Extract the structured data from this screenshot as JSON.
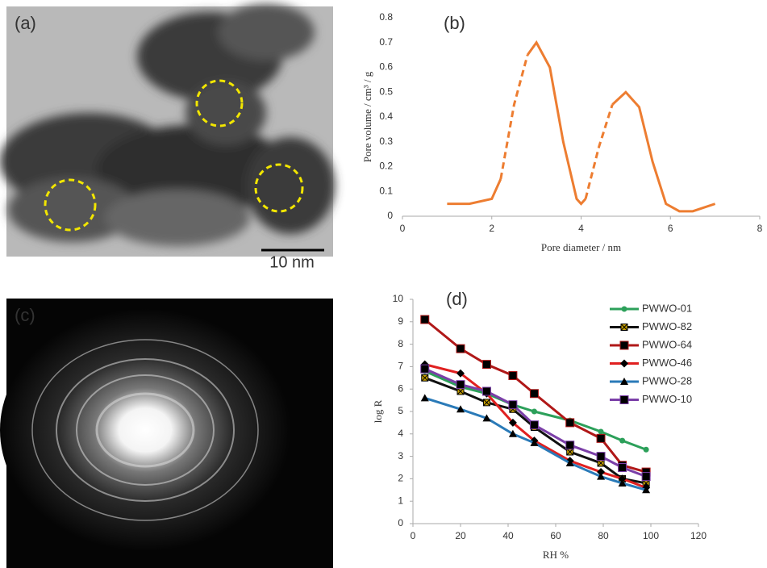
{
  "images": [
    {
      "label": "(a)",
      "scale_bar": "10 nm"
    },
    {
      "label": "(c)"
    }
  ],
  "chart_data": [
    {
      "type": "line",
      "annotation": "(b)",
      "x_label": "Pore diameter / nm",
      "y_label": "Pore volume / cm³ / g",
      "x": [
        1,
        1.5,
        2,
        2.2,
        2.5,
        2.8,
        3,
        3.3,
        3.6,
        3.9,
        4.0,
        4.1,
        4.4,
        4.7,
        5,
        5.3,
        5.6,
        5.9,
        6.2,
        6.5,
        7
      ],
      "series": [
        {
          "color": "#ed7d31",
          "style": "solid",
          "values": [
            0.05,
            0.05,
            0.07,
            0.15,
            null,
            0.65,
            0.7,
            0.6,
            0.3,
            0.07,
            0.05,
            0.07,
            null,
            0.45,
            0.5,
            0.44,
            0.22,
            0.05,
            0.02,
            0.02,
            0.05
          ]
        },
        {
          "color": "#ed7d31",
          "style": "dashed",
          "values": [
            null,
            null,
            null,
            0.15,
            0.45,
            0.65,
            null,
            null,
            null,
            null,
            null,
            0.07,
            0.28,
            0.45,
            null,
            null,
            null,
            null,
            null,
            null,
            null
          ]
        }
      ],
      "xlim": [
        0,
        8
      ],
      "xticks": [
        0,
        2,
        4,
        6,
        8
      ],
      "ylim": [
        0,
        0.8
      ],
      "yticks": [
        0,
        0.1,
        0.2,
        0.3,
        0.4,
        0.5,
        0.6,
        0.7,
        0.8
      ],
      "y_axis_line": false
    },
    {
      "type": "line",
      "annotation": "(d)",
      "x_label": "RH %",
      "y_label": "log R",
      "x": [
        5,
        20,
        31,
        42,
        51,
        66,
        79,
        88,
        98
      ],
      "series": [
        {
          "name": "PWWO-01",
          "color": "#2ca05a",
          "marker": "circle",
          "values": [
            6.8,
            6.1,
            5.8,
            5.3,
            5.0,
            4.6,
            4.1,
            3.7,
            3.3
          ]
        },
        {
          "name": "PWWO-82",
          "color": "#111111",
          "marker": "xsquare",
          "values": [
            6.5,
            5.9,
            5.4,
            5.1,
            4.3,
            3.2,
            2.7,
            2.0,
            1.8
          ]
        },
        {
          "name": "PWWO-64",
          "color": "#b01818",
          "marker": "square",
          "values": [
            9.1,
            7.8,
            7.1,
            6.6,
            5.8,
            4.5,
            3.8,
            2.6,
            2.3
          ]
        },
        {
          "name": "PWWO-46",
          "color": "#e02020",
          "marker": "diamond",
          "values": [
            7.1,
            6.7,
            5.8,
            4.5,
            3.7,
            2.8,
            2.3,
            2.0,
            1.6
          ]
        },
        {
          "name": "PWWO-28",
          "color": "#2a7ab8",
          "marker": "triangle",
          "values": [
            5.6,
            5.1,
            4.7,
            4.0,
            3.6,
            2.7,
            2.1,
            1.8,
            1.5
          ]
        },
        {
          "name": "PWWO-10",
          "color": "#7b3fa8",
          "marker": "square",
          "values": [
            6.9,
            6.2,
            5.9,
            5.3,
            4.4,
            3.5,
            3.0,
            2.5,
            2.1
          ]
        }
      ],
      "xlim": [
        0,
        120
      ],
      "xticks": [
        0,
        20,
        40,
        60,
        80,
        100,
        120
      ],
      "ylim": [
        0,
        10
      ],
      "yticks": [
        0,
        1,
        2,
        3,
        4,
        5,
        6,
        7,
        8,
        9,
        10
      ],
      "y_axis_line": true,
      "legend": "top-right"
    }
  ]
}
